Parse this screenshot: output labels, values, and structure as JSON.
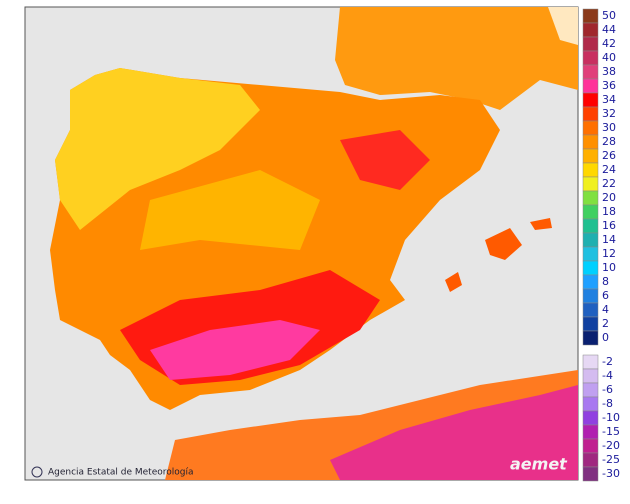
{
  "footer": {
    "agency": "Agencia Estatal de Meteorología",
    "logo": "aemet"
  },
  "legend": {
    "stops": [
      {
        "value": 50,
        "color": "#8b3a1a"
      },
      {
        "value": 44,
        "color": "#a0282d"
      },
      {
        "value": 42,
        "color": "#b02a4a"
      },
      {
        "value": 40,
        "color": "#c83060"
      },
      {
        "value": 38,
        "color": "#e0407a"
      },
      {
        "value": 36,
        "color": "#ff3399"
      },
      {
        "value": 34,
        "color": "#ff0000"
      },
      {
        "value": 32,
        "color": "#ff4000"
      },
      {
        "value": 30,
        "color": "#ff7000"
      },
      {
        "value": 28,
        "color": "#ff9000"
      },
      {
        "value": 26,
        "color": "#ffb000"
      },
      {
        "value": 24,
        "color": "#ffd800"
      },
      {
        "value": 22,
        "color": "#f0f020"
      },
      {
        "value": 20,
        "color": "#80e040"
      },
      {
        "value": 18,
        "color": "#40d060"
      },
      {
        "value": 16,
        "color": "#20c090"
      },
      {
        "value": 14,
        "color": "#20b0b0"
      },
      {
        "value": 12,
        "color": "#20c0e0"
      },
      {
        "value": 10,
        "color": "#00d0ff"
      },
      {
        "value": 8,
        "color": "#20a0ff"
      },
      {
        "value": 6,
        "color": "#2080e0"
      },
      {
        "value": 4,
        "color": "#2060c0"
      },
      {
        "value": 2,
        "color": "#1040a0"
      },
      {
        "value": 0,
        "color": "#0a2070"
      }
    ],
    "negative_stops": [
      {
        "value": -2,
        "color": "#e6d8f4"
      },
      {
        "value": -4,
        "color": "#d4bcf0"
      },
      {
        "value": -6,
        "color": "#c0a0f0"
      },
      {
        "value": -8,
        "color": "#a878f0"
      },
      {
        "value": -10,
        "color": "#9040e0"
      },
      {
        "value": -15,
        "color": "#b020b0"
      },
      {
        "value": -20,
        "color": "#c02090"
      },
      {
        "value": -25,
        "color": "#a02880"
      },
      {
        "value": -30,
        "color": "#803080"
      }
    ]
  }
}
